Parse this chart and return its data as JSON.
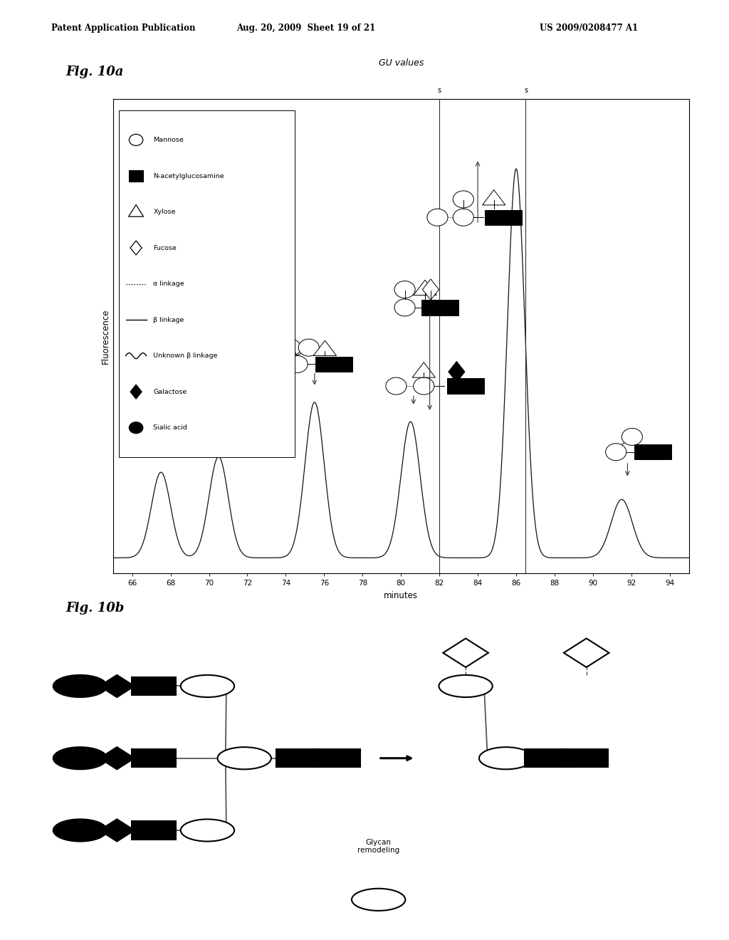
{
  "header_left": "Patent Application Publication",
  "header_mid": "Aug. 20, 2009  Sheet 19 of 21",
  "header_right": "US 2009/0208477 A1",
  "fig10a_label": "Fig. 10a",
  "fig10b_label": "Fig. 10b",
  "gu_values_label": "GU values",
  "xlabel": "minutes",
  "ylabel": "Fluorescence",
  "xmin": 65,
  "xmax": 95,
  "xticks": [
    66,
    68,
    70,
    72,
    74,
    76,
    78,
    80,
    82,
    84,
    86,
    88,
    90,
    92,
    94
  ],
  "peak_positions": [
    67.5,
    70.5,
    75.5,
    80.5,
    86.0,
    91.5
  ],
  "peak_heights": [
    0.22,
    0.26,
    0.4,
    0.35,
    1.0,
    0.15
  ],
  "peak_widths": [
    0.5,
    0.5,
    0.5,
    0.5,
    0.45,
    0.55
  ],
  "gu_lines": [
    82.0,
    86.5
  ],
  "glycan_remodeling_label": "Glycan\nremodeling",
  "bg_color": "#ffffff",
  "legend_items": [
    [
      "circle_open",
      "Mannose"
    ],
    [
      "square_filled",
      "N-acetylglucosamine"
    ],
    [
      "triangle_open",
      "Xylose"
    ],
    [
      "diamond_open",
      "Fucose"
    ],
    [
      "dashed_line",
      "α linkage"
    ],
    [
      "solid_line",
      "β linkage"
    ],
    [
      "wavy_line",
      "Unknown β linkage"
    ],
    [
      "diamond_filled",
      "Galactose"
    ],
    [
      "circle_filled",
      "Sialic acid"
    ]
  ]
}
